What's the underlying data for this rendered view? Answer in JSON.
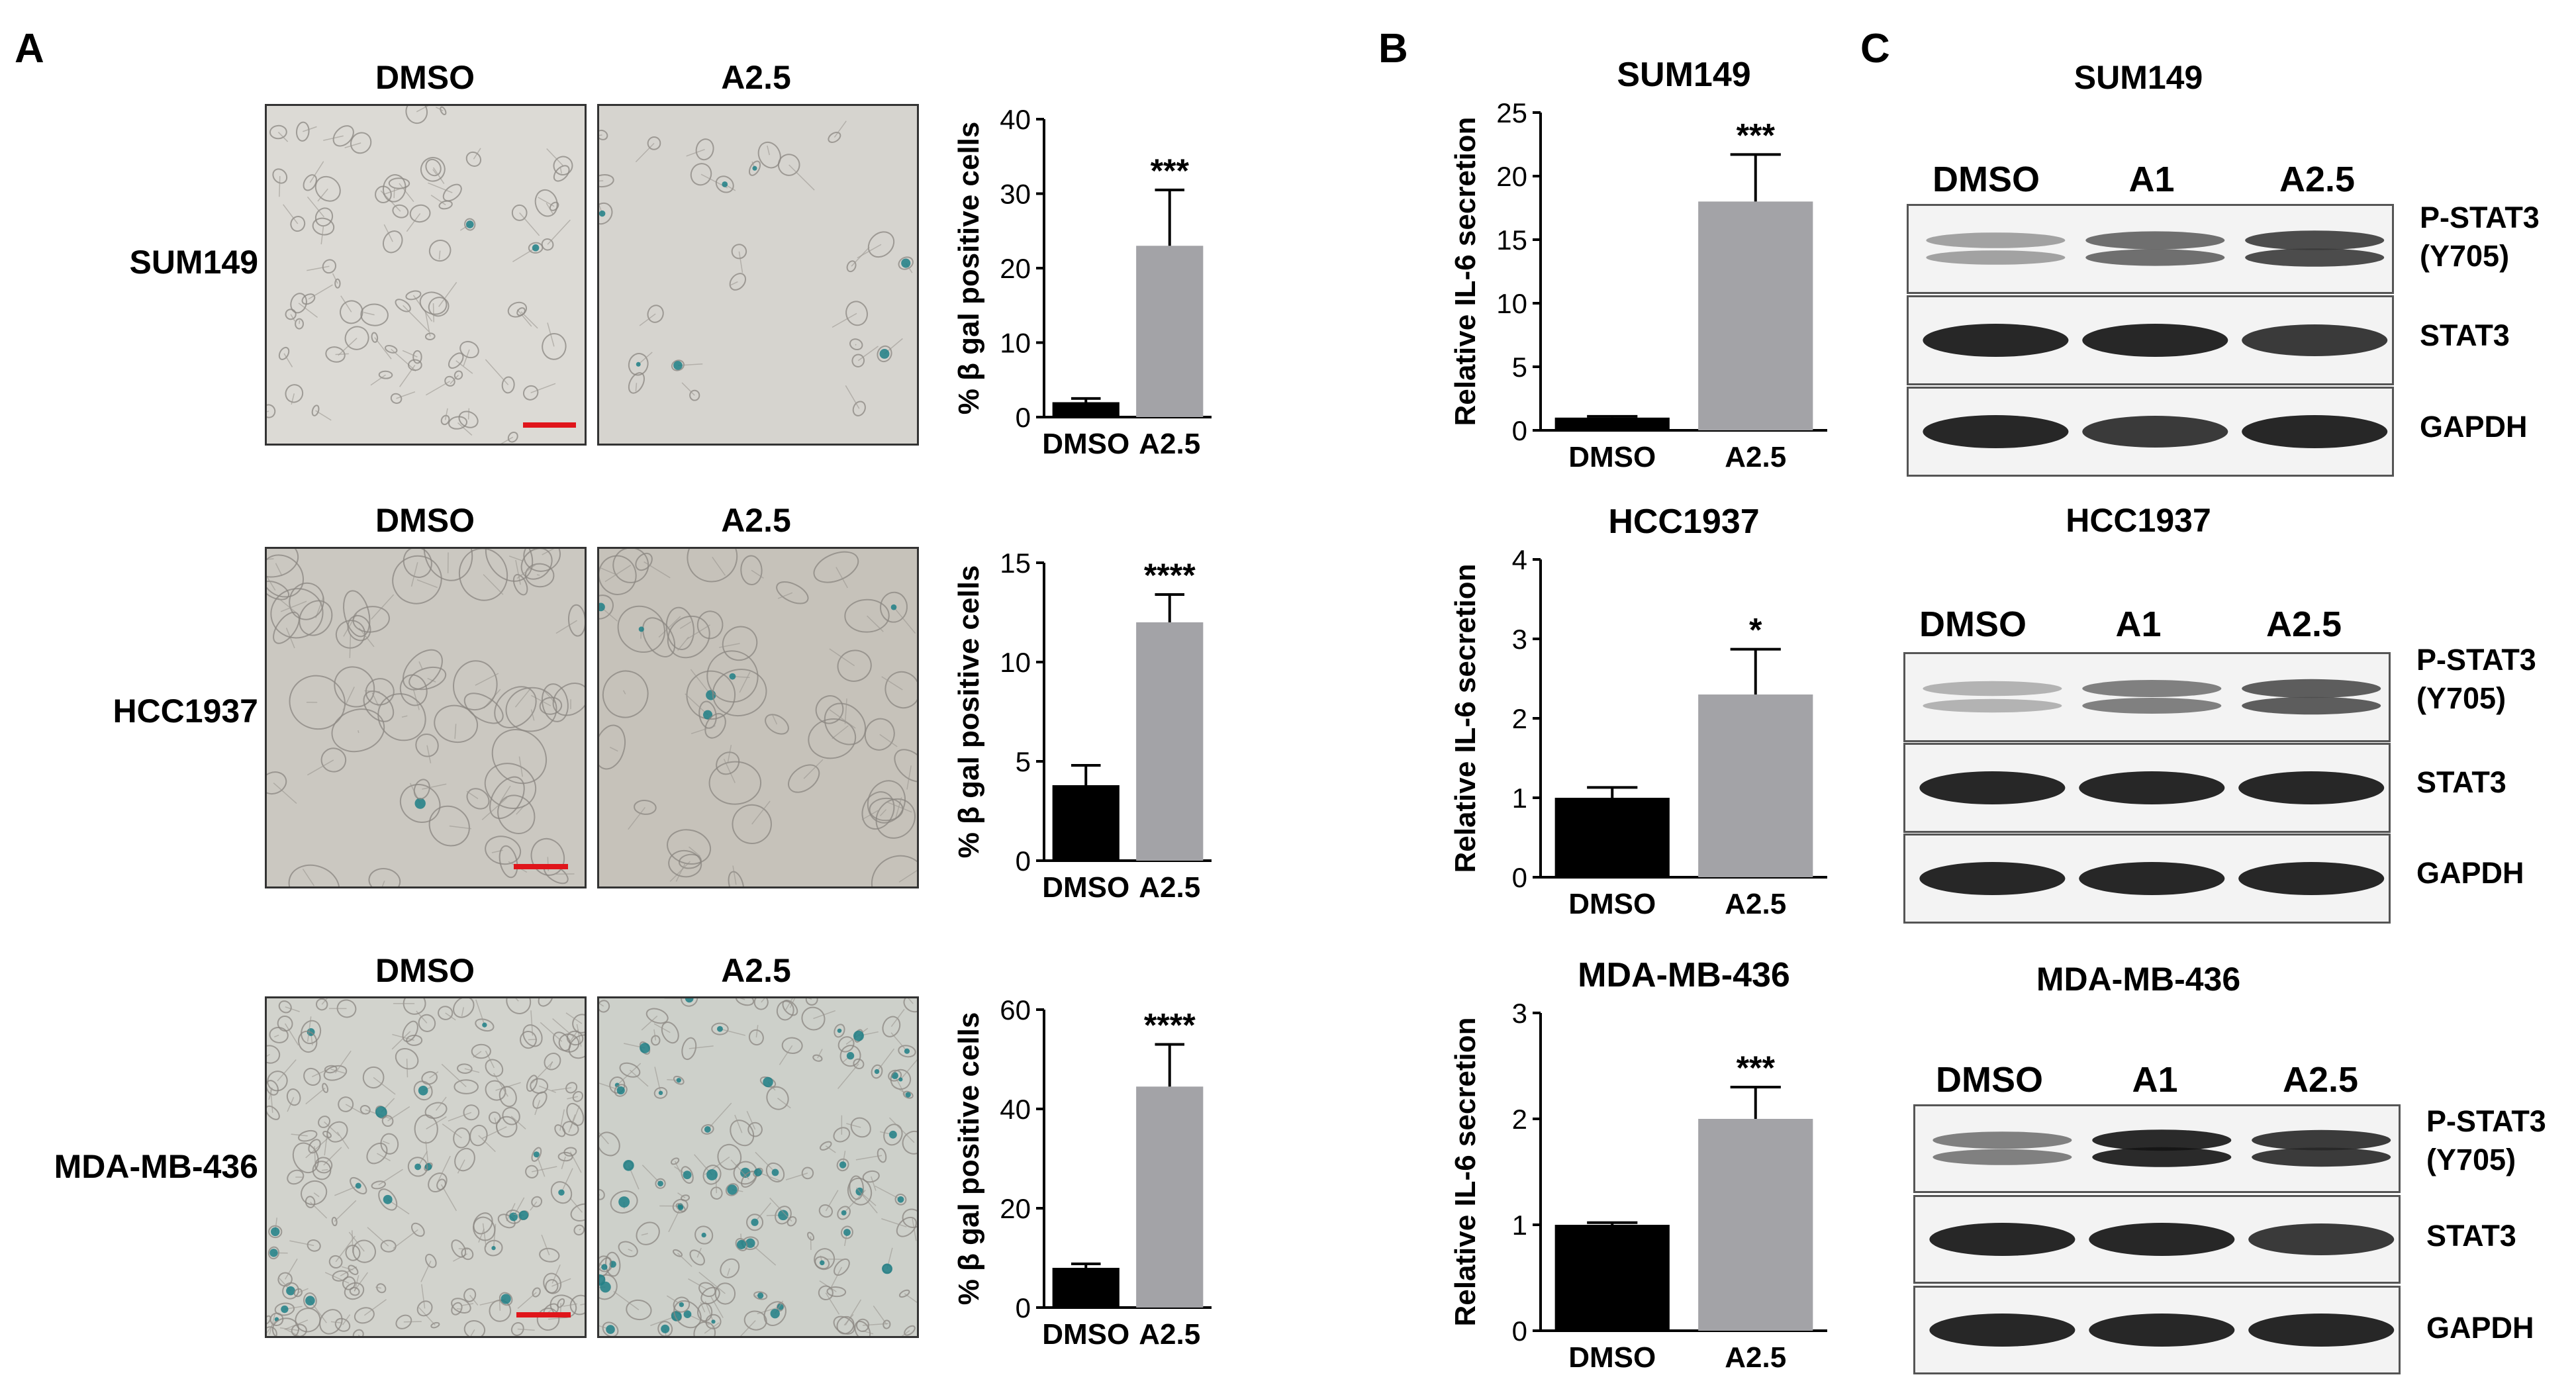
{
  "panels": {
    "a": "A",
    "b": "B",
    "c": "C"
  },
  "panel_a": {
    "rows": [
      {
        "cell_line": "SUM149",
        "treatments": [
          "DMSO",
          "A2.5"
        ]
      },
      {
        "cell_line": "HCC1937",
        "treatments": [
          "DMSO",
          "A2.5"
        ]
      },
      {
        "cell_line": "MDA-MB-436",
        "treatments": [
          "DMSO",
          "A2.5"
        ]
      }
    ]
  },
  "panel_b": {
    "titles": [
      "SUM149",
      "HCC1937",
      "MDA-MB-436"
    ]
  },
  "panel_c": {
    "groups": [
      {
        "title": "SUM149",
        "lanes": [
          "DMSO",
          "A1",
          "A2.5"
        ],
        "rows": [
          "P-STAT3\n(Y705)",
          "STAT3",
          "GAPDH"
        ]
      },
      {
        "title": "HCC1937",
        "lanes": [
          "DMSO",
          "A1",
          "A2.5"
        ],
        "rows": [
          "P-STAT3\n(Y705)",
          "STAT3",
          "GAPDH"
        ]
      },
      {
        "title": "MDA-MB-436",
        "lanes": [
          "DMSO",
          "A1",
          "A2.5"
        ],
        "rows": [
          "P-STAT3\n(Y705)",
          "STAT3",
          "GAPDH"
        ]
      }
    ],
    "band_intensity": [
      [
        [
          0.3,
          0.6,
          0.8
        ],
        [
          0.9,
          0.9,
          0.8
        ],
        [
          0.9,
          0.8,
          0.9
        ]
      ],
      [
        [
          0.2,
          0.5,
          0.7
        ],
        [
          0.9,
          0.9,
          0.9
        ],
        [
          0.9,
          0.9,
          0.9
        ]
      ],
      [
        [
          0.5,
          1.0,
          0.9
        ],
        [
          0.9,
          0.9,
          0.8
        ],
        [
          0.9,
          0.9,
          0.9
        ]
      ]
    ]
  },
  "colors": {
    "dmso_bar": "#000000",
    "treated_bar": "#a3a3a7",
    "scale_bar": "#e0151b"
  },
  "chart_data": [
    {
      "type": "bar",
      "categories": [
        "DMSO",
        "A2.5"
      ],
      "values": [
        2,
        23
      ],
      "errors": [
        0.5,
        7.5
      ],
      "significance": "***",
      "ylabel": "% β gal positive cells",
      "ylim": [
        0,
        40
      ],
      "yticks": [
        0,
        10,
        20,
        30,
        40
      ]
    },
    {
      "type": "bar",
      "categories": [
        "DMSO",
        "A2.5"
      ],
      "values": [
        3.8,
        12
      ],
      "errors": [
        1.0,
        1.4
      ],
      "significance": "****",
      "ylabel": "% β gal positive cells",
      "ylim": [
        0,
        15
      ],
      "yticks": [
        0,
        5,
        10,
        15
      ]
    },
    {
      "type": "bar",
      "categories": [
        "DMSO",
        "A2.5"
      ],
      "values": [
        8,
        44.5
      ],
      "errors": [
        0.8,
        8.5
      ],
      "significance": "****",
      "ylabel": "% β gal positive cells",
      "ylim": [
        0,
        60
      ],
      "yticks": [
        0,
        20,
        40,
        60
      ]
    },
    {
      "type": "bar",
      "title": "SUM149",
      "categories": [
        "DMSO",
        "A2.5"
      ],
      "values": [
        1,
        18
      ],
      "errors": [
        0.1,
        3.7
      ],
      "significance": "***",
      "ylabel": "Relative IL-6 secretion",
      "ylim": [
        0,
        25
      ],
      "yticks": [
        0,
        5,
        10,
        15,
        20,
        25
      ]
    },
    {
      "type": "bar",
      "title": "HCC1937",
      "categories": [
        "DMSO",
        "A2.5"
      ],
      "values": [
        1,
        2.3
      ],
      "errors": [
        0.13,
        0.57
      ],
      "significance": "*",
      "ylabel": "Relative IL-6 secretion",
      "ylim": [
        0,
        4
      ],
      "yticks": [
        0,
        1,
        2,
        3,
        4
      ]
    },
    {
      "type": "bar",
      "title": "MDA-MB-436",
      "categories": [
        "DMSO",
        "A2.5"
      ],
      "values": [
        1,
        2
      ],
      "errors": [
        0.02,
        0.3
      ],
      "significance": "***",
      "ylabel": "Relative IL-6 secretion",
      "ylim": [
        0,
        3
      ],
      "yticks": [
        0,
        1,
        2,
        3
      ]
    }
  ]
}
